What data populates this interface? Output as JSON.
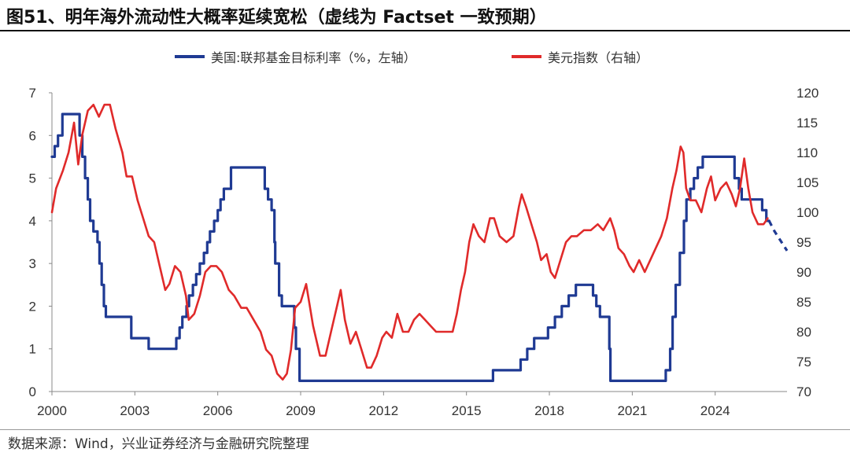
{
  "title": "图51、明年海外流动性大概率延续宽松（虚线为 Factset 一致预期）",
  "source": "数据来源：Wind，兴业证券经济与金融研究院整理",
  "chart_data": {
    "type": "line",
    "title": "图51、明年海外流动性大概率延续宽松（虚线为 Factset 一致预期）",
    "legend_position": "top-center",
    "grid": false,
    "x_ticks": [
      "2000",
      "2003",
      "2006",
      "2009",
      "2012",
      "2015",
      "2018",
      "2021",
      "2024"
    ],
    "xlim": [
      2000.0,
      2026.6
    ],
    "y_left": {
      "label": "",
      "lim": [
        0,
        7
      ],
      "ticks": [
        "0",
        "1",
        "2",
        "3",
        "4",
        "5",
        "6",
        "7"
      ]
    },
    "y_right": {
      "label": "",
      "lim": [
        70,
        120
      ],
      "ticks": [
        "70",
        "75",
        "80",
        "85",
        "90",
        "95",
        "100",
        "105",
        "110",
        "115",
        "120"
      ]
    },
    "series": [
      {
        "name": "美国:联邦基金目标利率（%，左轴）",
        "axis": "left",
        "color": "#1f3a93",
        "style": "step",
        "points": [
          [
            2000.0,
            5.5
          ],
          [
            2000.1,
            5.75
          ],
          [
            2000.22,
            6.0
          ],
          [
            2000.38,
            6.5
          ],
          [
            2001.0,
            6.0
          ],
          [
            2001.1,
            5.5
          ],
          [
            2001.2,
            5.0
          ],
          [
            2001.3,
            4.5
          ],
          [
            2001.38,
            4.0
          ],
          [
            2001.5,
            3.75
          ],
          [
            2001.65,
            3.5
          ],
          [
            2001.72,
            3.0
          ],
          [
            2001.8,
            2.5
          ],
          [
            2001.88,
            2.0
          ],
          [
            2001.95,
            1.75
          ],
          [
            2002.87,
            1.25
          ],
          [
            2003.5,
            1.0
          ],
          [
            2004.5,
            1.25
          ],
          [
            2004.62,
            1.5
          ],
          [
            2004.72,
            1.75
          ],
          [
            2004.87,
            2.0
          ],
          [
            2004.96,
            2.25
          ],
          [
            2005.1,
            2.5
          ],
          [
            2005.22,
            2.75
          ],
          [
            2005.35,
            3.0
          ],
          [
            2005.5,
            3.25
          ],
          [
            2005.62,
            3.5
          ],
          [
            2005.72,
            3.75
          ],
          [
            2005.87,
            4.0
          ],
          [
            2006.0,
            4.25
          ],
          [
            2006.1,
            4.5
          ],
          [
            2006.22,
            4.75
          ],
          [
            2006.48,
            5.25
          ],
          [
            2007.7,
            4.75
          ],
          [
            2007.82,
            4.5
          ],
          [
            2007.95,
            4.25
          ],
          [
            2008.05,
            3.5
          ],
          [
            2008.08,
            3.0
          ],
          [
            2008.22,
            2.25
          ],
          [
            2008.32,
            2.0
          ],
          [
            2008.77,
            1.5
          ],
          [
            2008.83,
            1.0
          ],
          [
            2008.96,
            0.25
          ],
          [
            2015.96,
            0.5
          ],
          [
            2016.96,
            0.75
          ],
          [
            2017.2,
            1.0
          ],
          [
            2017.45,
            1.25
          ],
          [
            2017.95,
            1.5
          ],
          [
            2018.2,
            1.75
          ],
          [
            2018.45,
            2.0
          ],
          [
            2018.7,
            2.25
          ],
          [
            2018.96,
            2.5
          ],
          [
            2019.58,
            2.25
          ],
          [
            2019.7,
            2.0
          ],
          [
            2019.83,
            1.75
          ],
          [
            2020.17,
            1.0
          ],
          [
            2020.21,
            0.25
          ],
          [
            2022.21,
            0.5
          ],
          [
            2022.37,
            1.0
          ],
          [
            2022.46,
            1.75
          ],
          [
            2022.57,
            2.5
          ],
          [
            2022.72,
            3.25
          ],
          [
            2022.87,
            4.0
          ],
          [
            2022.96,
            4.5
          ],
          [
            2023.1,
            4.75
          ],
          [
            2023.23,
            5.0
          ],
          [
            2023.37,
            5.25
          ],
          [
            2023.55,
            5.5
          ],
          [
            2024.7,
            5.0
          ],
          [
            2024.86,
            4.75
          ],
          [
            2024.96,
            4.5
          ],
          [
            2025.7,
            4.25
          ],
          [
            2025.85,
            4.0
          ]
        ],
        "end_x": 2025.95
      },
      {
        "name": "Factset 一致预期",
        "axis": "left",
        "color": "#1f3a93",
        "style": "dashed",
        "points": [
          [
            2025.95,
            4.0
          ],
          [
            2026.15,
            3.75
          ],
          [
            2026.4,
            3.5
          ],
          [
            2026.6,
            3.3
          ]
        ]
      },
      {
        "name": "美元指数（右轴）",
        "axis": "right",
        "color": "#e02a2a",
        "style": "line",
        "points": [
          [
            2000.0,
            100
          ],
          [
            2000.15,
            104
          ],
          [
            2000.4,
            107
          ],
          [
            2000.6,
            110
          ],
          [
            2000.8,
            115
          ],
          [
            2000.95,
            108
          ],
          [
            2001.1,
            113
          ],
          [
            2001.3,
            117
          ],
          [
            2001.5,
            118
          ],
          [
            2001.7,
            116
          ],
          [
            2001.9,
            118
          ],
          [
            2002.1,
            118
          ],
          [
            2002.3,
            114
          ],
          [
            2002.55,
            110
          ],
          [
            2002.7,
            106
          ],
          [
            2002.9,
            106
          ],
          [
            2003.1,
            102
          ],
          [
            2003.3,
            99
          ],
          [
            2003.5,
            96
          ],
          [
            2003.7,
            95
          ],
          [
            2003.9,
            91
          ],
          [
            2004.1,
            87
          ],
          [
            2004.25,
            88
          ],
          [
            2004.45,
            91
          ],
          [
            2004.65,
            90
          ],
          [
            2004.85,
            86
          ],
          [
            2004.95,
            82
          ],
          [
            2005.15,
            83
          ],
          [
            2005.35,
            86
          ],
          [
            2005.55,
            90
          ],
          [
            2005.75,
            91
          ],
          [
            2005.95,
            91
          ],
          [
            2006.15,
            90
          ],
          [
            2006.4,
            87
          ],
          [
            2006.6,
            86
          ],
          [
            2006.85,
            84
          ],
          [
            2007.05,
            84
          ],
          [
            2007.3,
            82
          ],
          [
            2007.55,
            80
          ],
          [
            2007.75,
            77
          ],
          [
            2007.95,
            76
          ],
          [
            2008.15,
            73
          ],
          [
            2008.35,
            72
          ],
          [
            2008.5,
            73
          ],
          [
            2008.65,
            77
          ],
          [
            2008.8,
            84
          ],
          [
            2009.0,
            85
          ],
          [
            2009.2,
            88
          ],
          [
            2009.45,
            81
          ],
          [
            2009.7,
            76
          ],
          [
            2009.9,
            76
          ],
          [
            2010.1,
            80
          ],
          [
            2010.3,
            84
          ],
          [
            2010.45,
            87
          ],
          [
            2010.6,
            82
          ],
          [
            2010.8,
            78
          ],
          [
            2011.0,
            80
          ],
          [
            2011.2,
            77
          ],
          [
            2011.4,
            74
          ],
          [
            2011.55,
            74
          ],
          [
            2011.75,
            76
          ],
          [
            2011.95,
            79
          ],
          [
            2012.1,
            80
          ],
          [
            2012.3,
            79
          ],
          [
            2012.5,
            83
          ],
          [
            2012.7,
            80
          ],
          [
            2012.9,
            80
          ],
          [
            2013.1,
            82
          ],
          [
            2013.3,
            83
          ],
          [
            2013.5,
            82
          ],
          [
            2013.7,
            81
          ],
          [
            2013.9,
            80
          ],
          [
            2014.1,
            80
          ],
          [
            2014.3,
            80
          ],
          [
            2014.5,
            80
          ],
          [
            2014.65,
            83
          ],
          [
            2014.8,
            87
          ],
          [
            2014.95,
            90
          ],
          [
            2015.1,
            95
          ],
          [
            2015.25,
            98
          ],
          [
            2015.45,
            96
          ],
          [
            2015.65,
            95
          ],
          [
            2015.85,
            99
          ],
          [
            2016.0,
            99
          ],
          [
            2016.2,
            96
          ],
          [
            2016.45,
            95
          ],
          [
            2016.7,
            96
          ],
          [
            2016.9,
            101
          ],
          [
            2017.0,
            103
          ],
          [
            2017.15,
            101
          ],
          [
            2017.35,
            98
          ],
          [
            2017.55,
            95
          ],
          [
            2017.7,
            92
          ],
          [
            2017.9,
            93
          ],
          [
            2018.05,
            90
          ],
          [
            2018.2,
            89
          ],
          [
            2018.4,
            92
          ],
          [
            2018.6,
            95
          ],
          [
            2018.8,
            96
          ],
          [
            2019.0,
            96
          ],
          [
            2019.25,
            97
          ],
          [
            2019.5,
            97
          ],
          [
            2019.75,
            98
          ],
          [
            2019.95,
            97
          ],
          [
            2020.2,
            99
          ],
          [
            2020.35,
            97
          ],
          [
            2020.5,
            94
          ],
          [
            2020.7,
            93
          ],
          [
            2020.9,
            91
          ],
          [
            2021.05,
            90
          ],
          [
            2021.25,
            92
          ],
          [
            2021.45,
            90
          ],
          [
            2021.65,
            92
          ],
          [
            2021.85,
            94
          ],
          [
            2022.05,
            96
          ],
          [
            2022.25,
            99
          ],
          [
            2022.45,
            104
          ],
          [
            2022.6,
            107
          ],
          [
            2022.75,
            111
          ],
          [
            2022.85,
            110
          ],
          [
            2022.95,
            104
          ],
          [
            2023.1,
            102
          ],
          [
            2023.3,
            102
          ],
          [
            2023.5,
            100
          ],
          [
            2023.7,
            104
          ],
          [
            2023.85,
            106
          ],
          [
            2024.0,
            102
          ],
          [
            2024.2,
            104
          ],
          [
            2024.4,
            105
          ],
          [
            2024.6,
            103
          ],
          [
            2024.75,
            101
          ],
          [
            2024.9,
            104
          ],
          [
            2025.05,
            109
          ],
          [
            2025.2,
            104
          ],
          [
            2025.35,
            100
          ],
          [
            2025.55,
            98
          ],
          [
            2025.75,
            98
          ],
          [
            2025.9,
            99
          ]
        ]
      }
    ]
  }
}
